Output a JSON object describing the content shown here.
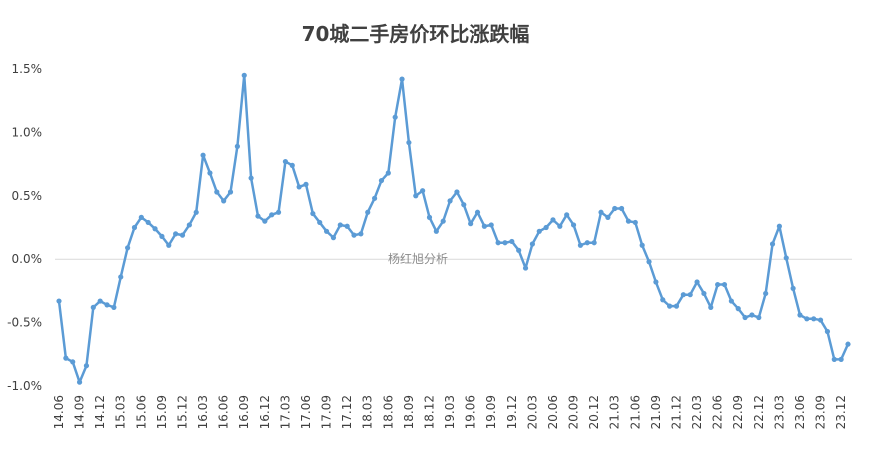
{
  "chart_data": {
    "type": "line",
    "title": "70城二手房价环比涨跌幅",
    "watermark": "杨红旭分析",
    "xlabel": "",
    "ylabel": "",
    "ylim": [
      -1.0,
      1.5
    ],
    "yticks": [
      "-1.0%",
      "-0.5%",
      "0.0%",
      "0.5%",
      "1.0%",
      "1.5%"
    ],
    "ytick_values": [
      -1.0,
      -0.5,
      0.0,
      0.5,
      1.0,
      1.5
    ],
    "grid": false,
    "zero_line": true,
    "legend": "none",
    "line_color": "#5B9BD5",
    "xtick_labels": [
      "14.06",
      "14.09",
      "14.12",
      "15.03",
      "15.06",
      "15.09",
      "15.12",
      "16.03",
      "16.06",
      "16.09",
      "16.12",
      "17.03",
      "17.06",
      "17.09",
      "17.12",
      "18.03",
      "18.06",
      "18.09",
      "18.12",
      "19.03",
      "19.06",
      "19.09",
      "19.12",
      "20.03",
      "20.06",
      "20.09",
      "20.12",
      "21.03",
      "21.06",
      "21.09",
      "21.12",
      "22.03",
      "22.06",
      "22.09",
      "22.12",
      "23.03",
      "23.06",
      "23.09",
      "23.12"
    ],
    "series": [
      {
        "values": [
          -0.33,
          -0.78,
          -0.81,
          -0.97,
          -0.84,
          -0.38,
          -0.33,
          -0.36,
          -0.38,
          -0.14,
          0.09,
          0.25,
          0.33,
          0.29,
          0.24,
          0.18,
          0.11,
          0.2,
          0.19,
          0.27,
          0.37,
          0.82,
          0.68,
          0.53,
          0.46,
          0.53,
          0.89,
          1.45,
          0.64,
          0.34,
          0.3,
          0.35,
          0.37,
          0.77,
          0.74,
          0.57,
          0.59,
          0.36,
          0.29,
          0.22,
          0.17,
          0.27,
          0.26,
          0.19,
          0.2,
          0.37,
          0.48,
          0.62,
          0.68,
          1.12,
          1.42,
          0.92,
          0.5,
          0.54,
          0.33,
          0.22,
          0.3,
          0.46,
          0.53,
          0.43,
          0.28,
          0.37,
          0.26,
          0.27,
          0.13,
          0.13,
          0.14,
          0.07,
          -0.07,
          0.12,
          0.22,
          0.25,
          0.31,
          0.26,
          0.35,
          0.27,
          0.11,
          0.13,
          0.13,
          0.37,
          0.33,
          0.4,
          0.4,
          0.3,
          0.29,
          0.11,
          -0.02,
          -0.18,
          -0.32,
          -0.37,
          -0.37,
          -0.28,
          -0.28,
          -0.18,
          -0.27,
          -0.38,
          -0.2,
          -0.2,
          -0.33,
          -0.39,
          -0.46,
          -0.44,
          -0.46,
          -0.27,
          0.12,
          0.26,
          0.01,
          -0.23,
          -0.44,
          -0.47,
          -0.47,
          -0.48,
          -0.57,
          -0.79,
          -0.79,
          -0.67
        ]
      }
    ]
  }
}
